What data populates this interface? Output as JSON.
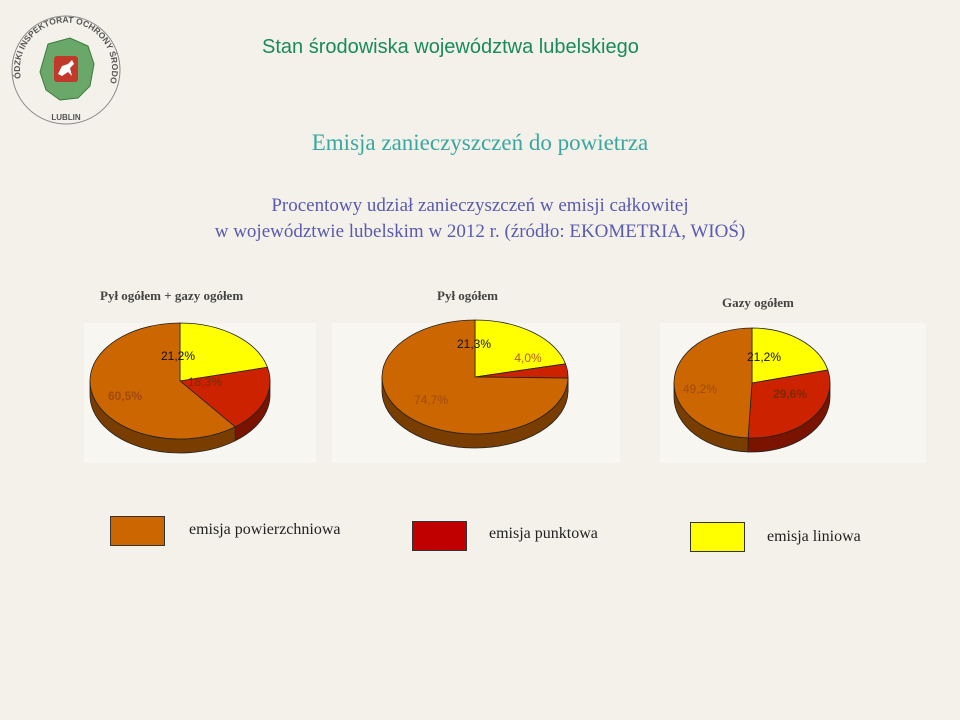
{
  "header": {
    "title": "Stan środowiska województwa lubelskiego",
    "logo_text_top": "WOJEWÓDZKI INSPEKTORAT OCHRONY ŚRODOWISKA",
    "logo_text_bottom": "LUBLIN"
  },
  "main_title": "Emisja zanieczyszczeń do powietrza",
  "subtitle_line1": "Procentowy udział zanieczyszczeń w emisji całkowitej",
  "subtitle_line2": "w województwie lubelskim w 2012 r. (źródło: EKOMETRIA, WIOŚ)",
  "colors": {
    "surface": "#cc6600",
    "point": "#cc2200",
    "linear": "#ffff00",
    "legend_point": "#c00000"
  },
  "chart_data": [
    {
      "type": "pie",
      "title": "Pył ogółem + gazy ogółem",
      "slices": [
        {
          "category": "emisja powierzchniowa",
          "value": 60.5,
          "label": "60,5%"
        },
        {
          "category": "emisja liniowa",
          "value": 21.2,
          "label": "21,2%"
        },
        {
          "category": "emisja punktowa",
          "value": 18.3,
          "label": "18,3%"
        }
      ]
    },
    {
      "type": "pie",
      "title": "Pył ogółem",
      "slices": [
        {
          "category": "emisja powierzchniowa",
          "value": 74.7,
          "label": "74,7%"
        },
        {
          "category": "emisja liniowa",
          "value": 21.3,
          "label": "21,3%"
        },
        {
          "category": "emisja punktowa",
          "value": 4.0,
          "label": "4,0%"
        }
      ]
    },
    {
      "type": "pie",
      "title": "Gazy ogółem",
      "slices": [
        {
          "category": "emisja powierzchniowa",
          "value": 49.2,
          "label": "49,2%"
        },
        {
          "category": "emisja liniowa",
          "value": 21.2,
          "label": "21,2%"
        },
        {
          "category": "emisja punktowa",
          "value": 29.6,
          "label": "29,6%"
        }
      ]
    }
  ],
  "legend": [
    {
      "label": "emisja powierzchniowa"
    },
    {
      "label": "emisja punktowa"
    },
    {
      "label": "emisja liniowa"
    }
  ]
}
